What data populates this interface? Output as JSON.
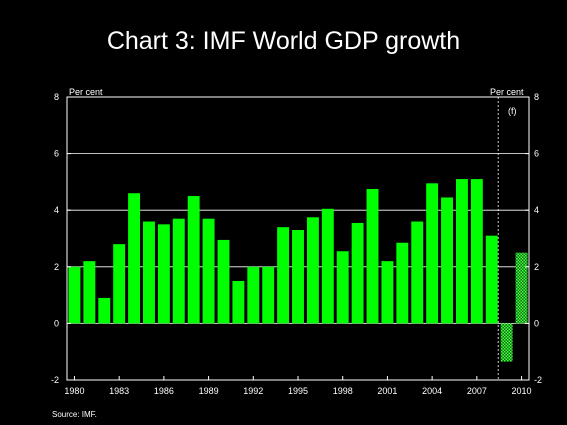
{
  "title": "Chart 3: IMF World GDP growth",
  "source": "Source:  IMF.",
  "colors": {
    "background": "#000000",
    "bar": "#00ff00",
    "forecast": "#33ee33",
    "text": "#ffffff"
  },
  "chart_data": {
    "type": "bar",
    "title": "Chart 3: IMF World GDP growth",
    "y_unit_left": "Per cent",
    "y_unit_right": "Per cent",
    "forecast_label": "(f)",
    "ylim": [
      -2,
      8
    ],
    "yticks": [
      -2,
      0,
      2,
      4,
      6,
      8
    ],
    "xtick_labels": [
      "1980",
      "1983",
      "1986",
      "1989",
      "1992",
      "1995",
      "1998",
      "2001",
      "2004",
      "2007",
      "2010"
    ],
    "grid": true,
    "categories": [
      1980,
      1981,
      1982,
      1983,
      1984,
      1985,
      1986,
      1987,
      1988,
      1989,
      1990,
      1991,
      1992,
      1993,
      1994,
      1995,
      1996,
      1997,
      1998,
      1999,
      2000,
      2001,
      2002,
      2003,
      2004,
      2005,
      2006,
      2007,
      2008,
      2009,
      2010
    ],
    "values": [
      2.0,
      2.2,
      0.9,
      2.8,
      4.6,
      3.6,
      3.5,
      3.7,
      4.5,
      3.7,
      2.95,
      1.5,
      2.0,
      2.0,
      3.4,
      3.3,
      3.75,
      4.05,
      2.55,
      3.55,
      4.75,
      2.2,
      2.85,
      3.6,
      4.95,
      4.45,
      5.1,
      5.1,
      3.1,
      -1.35,
      2.5
    ],
    "forecast_from": 2009
  }
}
